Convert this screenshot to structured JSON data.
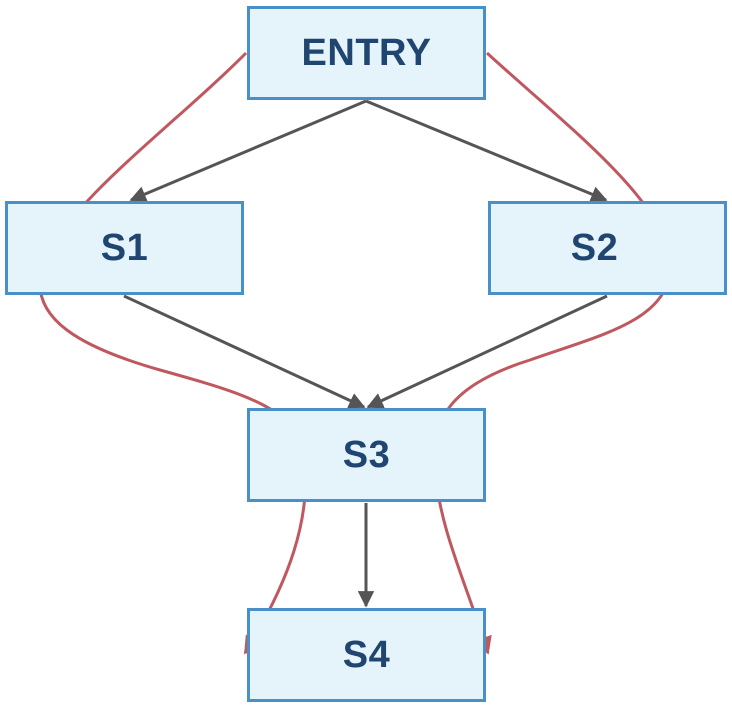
{
  "nodes": {
    "entry": "ENTRY",
    "s1": "S1",
    "s2": "S2",
    "s3": "S3",
    "s4": "S4"
  },
  "edges": [
    {
      "from": "ENTRY",
      "to": "S1"
    },
    {
      "from": "ENTRY",
      "to": "S2"
    },
    {
      "from": "S1",
      "to": "S3"
    },
    {
      "from": "S2",
      "to": "S3"
    },
    {
      "from": "S3",
      "to": "S4"
    }
  ],
  "paths": [
    {
      "from": "ENTRY",
      "to": "S4",
      "side": "left"
    },
    {
      "from": "ENTRY",
      "to": "S4",
      "side": "right"
    }
  ],
  "colors": {
    "node_fill": "#e5f3fb",
    "node_border": "#4a90c8",
    "node_text": "#1f4570",
    "edge": "#555555",
    "path": "#c0585f"
  }
}
